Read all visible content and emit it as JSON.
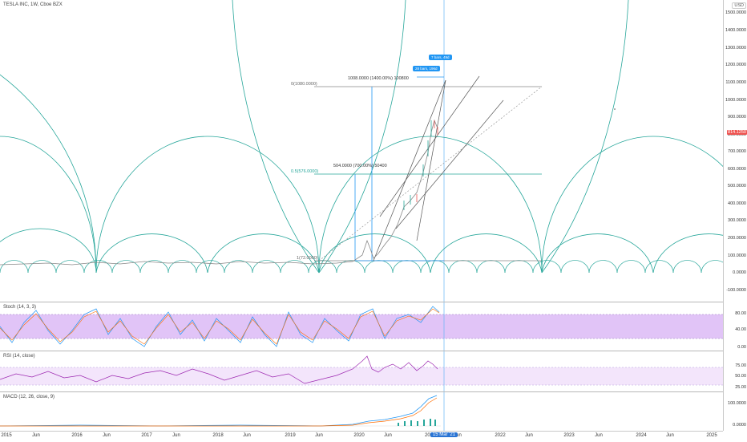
{
  "symbol": {
    "title": "TESLA INC, 1W, Cboe BZX"
  },
  "currency": "USD",
  "price_axis": {
    "main_labels": [
      "1500.0000",
      "1400.0000",
      "1300.0000",
      "1200.0000",
      "1100.0000",
      "1000.0000",
      "900.0000",
      "800.0000",
      "700.0000",
      "600.0000",
      "500.0000",
      "400.0000",
      "300.0000",
      "200.0000",
      "100.0000",
      "0.0000",
      "-100.0000"
    ],
    "last_price": "814.1250",
    "stoch_labels": [
      "80.00",
      "40.00",
      "0.00"
    ],
    "rsi_labels": [
      "75.00",
      "50.00",
      "25.00"
    ],
    "macd_labels": [
      "100.0000",
      "0.0000"
    ]
  },
  "time_axis": {
    "labels": [
      "2015",
      "Jun",
      "2016",
      "Jun",
      "2017",
      "Jun",
      "2018",
      "Jun",
      "2019",
      "Jun",
      "2020",
      "Jun",
      "202",
      "Jun",
      "2022",
      "Jun",
      "2023",
      "Jun",
      "2024",
      "Jun",
      "2025"
    ],
    "cursor_date": "15 Mar '21"
  },
  "annotations": {
    "fib_top": "0(1080.0000)",
    "fib_mid": "0.5(576.0000)",
    "fib_bottom": "1(72.0000)",
    "measure_top": "1008.0000 (1400.00%) 100800",
    "measure_mid": "504.0000 (700.00%) 50400",
    "tooltip_bars_1": "7 bars, 49d",
    "tooltip_bars_2": "28 bars, 196d"
  },
  "indicators": {
    "stoch": "Stoch (14, 3, 3)",
    "rsi": "RSI (14, close)",
    "macd": "MACD (12, 26, close, 9)"
  },
  "colors": {
    "arc": "#26a69a",
    "band_fill": "#e1c4f7",
    "rsi_fill": "#f3e5fb",
    "measure": "#2196f3",
    "price_badge": "#ef5350",
    "candle_up": "#26a69a",
    "candle_down": "#ef5350",
    "rsi_line": "#9c27b0",
    "macd_line": "#2196f3",
    "signal_line": "#ff6d00"
  }
}
